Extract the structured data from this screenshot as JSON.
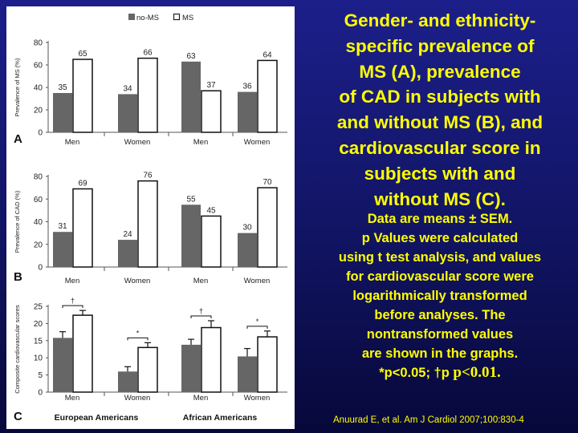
{
  "headline": {
    "lines": [
      "Gender- and ethnicity-",
      "specific prevalence of",
      "MS (A), prevalence",
      "of CAD in subjects with",
      "and without MS (B), and",
      "cardiovascular score in",
      "subjects with and",
      "without MS (C)."
    ]
  },
  "notes": {
    "lines": [
      "Data are means ± SEM.",
      "p Values were calculated",
      "using t test analysis, and values",
      "for cardiovascular score were",
      "logarithmically transformed",
      "before analyses. The",
      "nontransformed values",
      "are shown in the graphs."
    ],
    "sig_prefix": "*p<0.05; †p ",
    "sig_suffix": "p<0.01."
  },
  "citation": "Anuurad E, et al. Am J Cardiol 2007;100:830-4",
  "colors": {
    "no_ms": "#666666",
    "ms": "#ffffff",
    "text": "#ffff00"
  },
  "legend": {
    "no_ms": "no-MS",
    "ms": "MS"
  },
  "groups": {
    "left": "European Americans",
    "right": "African Americans"
  },
  "chart_data": [
    {
      "type": "bar",
      "panel": "A",
      "ylabel": "Prevalence of MS (%)",
      "ylim": [
        0,
        80
      ],
      "yticks": [
        0,
        20,
        40,
        60,
        80
      ],
      "categories": [
        "Men",
        "Women",
        "Men",
        "Women"
      ],
      "series": [
        {
          "name": "no-MS",
          "values": [
            35,
            34,
            63,
            36
          ]
        },
        {
          "name": "MS",
          "values": [
            65,
            66,
            37,
            64
          ]
        }
      ],
      "value_labels": true
    },
    {
      "type": "bar",
      "panel": "B",
      "ylabel": "Prevalence of CAD (%)",
      "ylim": [
        0,
        80
      ],
      "yticks": [
        0,
        20,
        40,
        60,
        80
      ],
      "categories": [
        "Men",
        "Women",
        "Men",
        "Women"
      ],
      "series": [
        {
          "name": "no-MS",
          "values": [
            31,
            24,
            55,
            30
          ]
        },
        {
          "name": "MS",
          "values": [
            69,
            76,
            45,
            70
          ]
        }
      ],
      "value_labels": true
    },
    {
      "type": "bar",
      "panel": "C",
      "ylabel": "Composite cardiovascular scores",
      "ylim": [
        0,
        25
      ],
      "yticks": [
        0,
        5,
        10,
        15,
        20,
        25
      ],
      "categories": [
        "Men",
        "Women",
        "Men",
        "Women"
      ],
      "series": [
        {
          "name": "no-MS",
          "values": [
            15.8,
            6.0,
            13.8,
            10.4
          ],
          "sem": [
            1.8,
            1.4,
            1.6,
            2.3
          ]
        },
        {
          "name": "MS",
          "values": [
            22.4,
            13.0,
            18.8,
            16.1
          ],
          "sem": [
            1.4,
            1.4,
            2.0,
            1.7
          ]
        }
      ],
      "significance": [
        "†",
        "*",
        "†",
        "*"
      ],
      "value_labels": false
    }
  ]
}
